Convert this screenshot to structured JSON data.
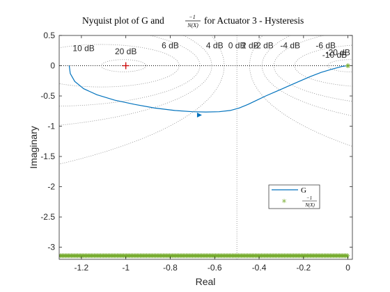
{
  "chart_data": {
    "type": "line",
    "title": {
      "prefix": "Nyquist plot of G and",
      "fraction": {
        "numerator": "−1",
        "denominator": "N(X)"
      },
      "suffix": "for Actuator 3 - Hysteresis"
    },
    "xlabel": "Real",
    "ylabel": "Imaginary",
    "xlim": [
      -1.3,
      0.02
    ],
    "ylim": [
      -3.2,
      0.5
    ],
    "xticks": [
      -1.2,
      -1,
      -0.8,
      -0.6,
      -0.4,
      -0.2,
      0
    ],
    "xtick_labels": [
      "-1.2",
      "-1",
      "-0.8",
      "-0.6",
      "-0.4",
      "-0.2",
      "0"
    ],
    "yticks": [
      0.5,
      0,
      -0.5,
      -1,
      -1.5,
      -2,
      -2.5,
      -3
    ],
    "ytick_labels": [
      "0.5",
      "0",
      "-0.5",
      "-1",
      "-1.5",
      "-2",
      "-2.5",
      "-3"
    ],
    "grid": "m-circles",
    "m_circle_labels": [
      {
        "text": "10 dB",
        "x": -1.19,
        "y": 0.24
      },
      {
        "text": "20 dB",
        "x": -1.0,
        "y": 0.19
      },
      {
        "text": "6 dB",
        "x": -0.8,
        "y": 0.29
      },
      {
        "text": "4 dB",
        "x": -0.6,
        "y": 0.29
      },
      {
        "text": "2 dB",
        "x": -0.44,
        "y": 0.29
      },
      {
        "text": "0 dB",
        "x": -0.5,
        "y": 0.29
      },
      {
        "text": "-2 dB",
        "x": -0.38,
        "y": 0.29
      },
      {
        "text": "-4 dB",
        "x": -0.26,
        "y": 0.29
      },
      {
        "text": "-6 dB",
        "x": -0.1,
        "y": 0.29
      },
      {
        "text": "-20 dB",
        "x": -0.045,
        "y": 0.17
      },
      {
        "text": "-10 dB",
        "x": -0.06,
        "y": 0.13
      }
    ],
    "m_circle_db": [
      20,
      10,
      6,
      4,
      2,
      0,
      -2,
      -4,
      -6,
      -10,
      -20
    ],
    "critical_point": {
      "x": -1,
      "y": 0,
      "marker": "+",
      "color": "#cc0000"
    },
    "series": [
      {
        "name": "G",
        "color": "#0072BD",
        "x": [
          -1.255,
          -1.25,
          -1.23,
          -1.19,
          -1.13,
          -1.05,
          -0.96,
          -0.87,
          -0.78,
          -0.7,
          -0.64,
          -0.58,
          -0.53,
          -0.49,
          -0.45,
          -0.41,
          -0.37,
          -0.32,
          -0.27,
          -0.22,
          -0.17,
          -0.12,
          -0.07,
          -0.03,
          -0.005
        ],
        "y": [
          0.0,
          -0.13,
          -0.26,
          -0.38,
          -0.48,
          -0.57,
          -0.64,
          -0.7,
          -0.74,
          -0.76,
          -0.765,
          -0.76,
          -0.74,
          -0.7,
          -0.64,
          -0.57,
          -0.5,
          -0.42,
          -0.34,
          -0.26,
          -0.18,
          -0.11,
          -0.055,
          -0.015,
          0.0
        ],
        "arrow_at": {
          "x": -0.67,
          "y": -0.815
        }
      },
      {
        "name": {
          "numerator": "−1",
          "denominator": "N(X)"
        },
        "color": "#77AC30",
        "marker": "*",
        "x_start": -1.3,
        "x_end": 0.0,
        "y": -3.14,
        "extra_point": {
          "x": 0.0,
          "y": 0.0
        }
      }
    ],
    "legend": "lower-right"
  }
}
